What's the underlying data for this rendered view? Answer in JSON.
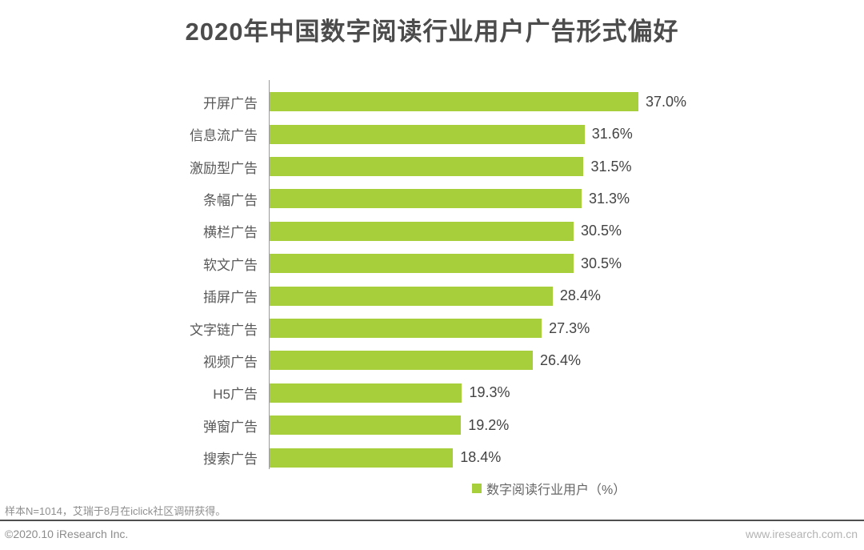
{
  "title": "2020年中国数字阅读行业用户广告形式偏好",
  "colors": {
    "bar": "#a7ce3b",
    "title_text": "#4c4c4c",
    "category_text": "#595959",
    "value_text": "#434343",
    "axis_line": "#9b9b9b"
  },
  "chart_data": {
    "type": "bar",
    "orientation": "horizontal",
    "title": "2020年中国数字阅读行业用户广告形式偏好",
    "categories": [
      "开屏广告",
      "信息流广告",
      "激励型广告",
      "条幅广告",
      "横栏广告",
      "软文广告",
      "插屏广告",
      "文字链广告",
      "视频广告",
      "H5广告",
      "弹窗广告",
      "搜索广告"
    ],
    "values": [
      37.0,
      31.6,
      31.5,
      31.3,
      30.5,
      30.5,
      28.4,
      27.3,
      26.4,
      19.3,
      19.2,
      18.4
    ],
    "value_labels": [
      "37.0%",
      "31.6%",
      "31.5%",
      "31.3%",
      "30.5%",
      "30.5%",
      "28.4%",
      "27.3%",
      "26.4%",
      "19.3%",
      "19.2%",
      "18.4%"
    ],
    "series": [
      {
        "name": "数字阅读行业用户（%）",
        "values": [
          37.0,
          31.6,
          31.5,
          31.3,
          30.5,
          30.5,
          28.4,
          27.3,
          26.4,
          19.3,
          19.2,
          18.4
        ]
      }
    ],
    "xlabel": "",
    "ylabel": "",
    "value_unit": "%",
    "xlim": [
      0,
      40
    ],
    "grid": false,
    "legend_position": "bottom",
    "data_labels": true
  },
  "legend": {
    "label": "数字阅读行业用户（%）"
  },
  "footer": {
    "footnote": "样本N=1014，艾瑞于8月在iclick社区调研获得。",
    "copyright": "©2020.10 iResearch Inc.",
    "url": "www.iresearch.com.cn"
  }
}
